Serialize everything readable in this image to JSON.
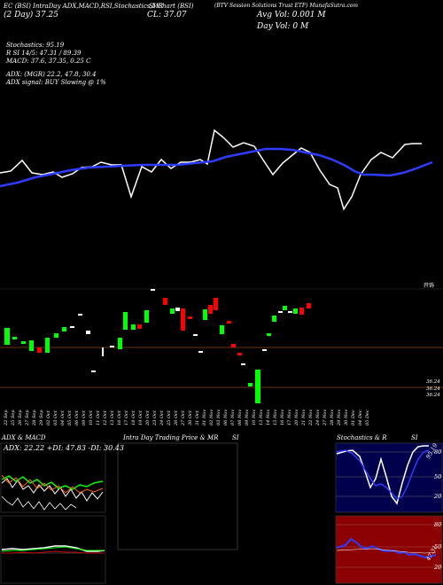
{
  "header": {
    "line1_a": "EC (BSI) IntraDay ADX,MACD,R",
    "line1_b": "SI,Stochastics,MR",
    "line1_c": "SI Chart (BSI)",
    "line1_d": "(BTV Session Solutions Trust ETF) MunafaSutra.com",
    "line2_a": "(2 Day) 37.25",
    "line2_b": "CL: 37.07",
    "avg_vol": "Avg Vol: 0.001 M",
    "day_vol": "Day Vol: 0   M"
  },
  "indicators": {
    "stochastics": "Stochastics: 95.19",
    "rsi": "R              SI 14/5: 47.31 / 89.39",
    "macd": "MACD: 37.6, 37.35, 0.25 C",
    "adx": "ADX:                                (MGR) 22.2, 47.8, 30.4",
    "adx_signal": "ADX   signal:                                BUY Slowing @ 1%"
  },
  "price_labels": [
    "36.24",
    "36.24",
    "36.24"
  ],
  "right_label": "开饰",
  "dates": [
    "22 Sep",
    "25 Sep",
    "26 Sep",
    "27 Sep",
    "28 Sep",
    "29 Sep",
    "02 Oct",
    "03 Oct",
    "04 Oct",
    "05 Oct",
    "06 Oct",
    "09 Oct",
    "10 Oct",
    "11 Oct",
    "12 Oct",
    "13 Oct",
    "16 Oct",
    "17 Oct",
    "18 Oct",
    "19 Oct",
    "20 Oct",
    "23 Oct",
    "24 Oct",
    "25 Oct",
    "26 Oct",
    "27 Oct",
    "30 Oct",
    "31 Oct",
    "01 Nov",
    "02 Nov",
    "03 Nov",
    "06 Nov",
    "07 Nov",
    "08 Nov",
    "09 Nov",
    "10 Nov",
    "13 Nov",
    "14 Nov",
    "15 Nov",
    "16 Nov",
    "17 Nov",
    "20 Nov",
    "21 Nov",
    "22 Nov",
    "24 Nov",
    "27 Nov",
    "28 Nov",
    "29 Nov",
    "30 Nov",
    "01 Dec",
    "04 Dec",
    "05 Dec"
  ],
  "panels": {
    "adx_title": "ADX  & MACD",
    "adx_values": "ADX: 22.22  +DI: 47.83 -DI: 30.43",
    "intraday_title": "Intra  Day Trading Price  & MR",
    "intraday_title_b": "SI",
    "stoch_title": "Stochastics & R",
    "stoch_title_b": "SI",
    "stoch_levels": [
      "80",
      "50",
      "20"
    ],
    "stoch_value": "95.19",
    "rsi_levels": [
      "80",
      "50",
      "20"
    ],
    "rsi_value": "47.31"
  },
  "colors": {
    "ma": "#2f3cff",
    "up": "#00ff00",
    "down": "#ff0000",
    "grid": "#8b4513"
  }
}
